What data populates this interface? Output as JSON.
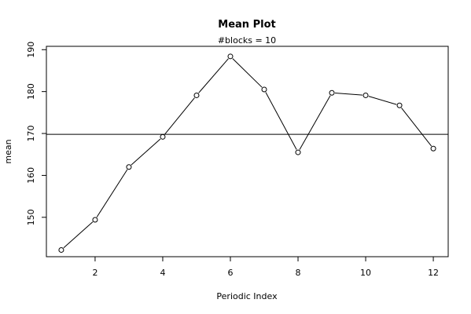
{
  "chart_data": {
    "type": "line",
    "title": "Mean Plot",
    "subtitle": "#blocks =  10",
    "xlabel": "Periodic Index",
    "ylabel": "mean",
    "x": [
      1,
      2,
      3,
      4,
      5,
      6,
      7,
      8,
      9,
      10,
      11,
      12
    ],
    "values": [
      142.2,
      149.4,
      162.0,
      169.2,
      179.1,
      188.4,
      180.5,
      165.5,
      179.7,
      179.1,
      176.7,
      166.4
    ],
    "reference_line": 169.8,
    "xlim": [
      0.56,
      12.44
    ],
    "ylim": [
      140.6,
      190.8
    ],
    "xticks": [
      2,
      4,
      6,
      8,
      10,
      12
    ],
    "yticks": [
      150,
      160,
      170,
      180,
      190
    ],
    "marker": "open-circle",
    "line_color": "#000000"
  }
}
